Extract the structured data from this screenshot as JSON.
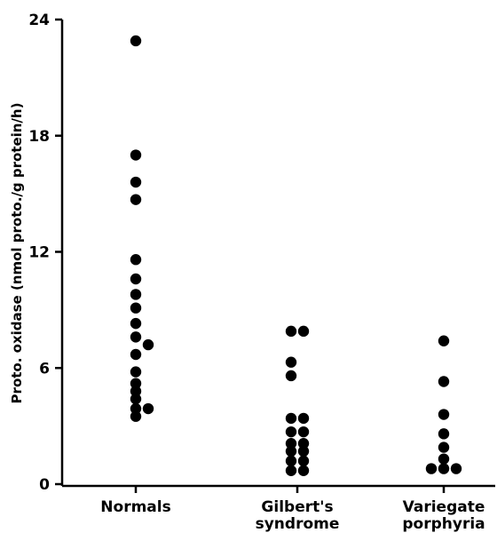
{
  "chart_data": {
    "type": "scatter",
    "title": "",
    "xlabel": "",
    "ylabel": "Proto. oxidase (nmol proto./g protein/h)",
    "ylim": [
      0,
      24
    ],
    "yticks": [
      0,
      6,
      12,
      18,
      24
    ],
    "grid": false,
    "categories": [
      {
        "key": "normals",
        "lines": [
          "Normals"
        ]
      },
      {
        "key": "gilbert",
        "lines": [
          "Gilbert's",
          "syndrome"
        ]
      },
      {
        "key": "variegate",
        "lines": [
          "Variegate",
          "porphyria"
        ]
      }
    ],
    "series": [
      {
        "category": "normals",
        "points": [
          {
            "offset": 0,
            "y": 22.9
          },
          {
            "offset": 0,
            "y": 17.0
          },
          {
            "offset": 0,
            "y": 15.6
          },
          {
            "offset": 0,
            "y": 14.7
          },
          {
            "offset": 0,
            "y": 11.6
          },
          {
            "offset": 0,
            "y": 10.6
          },
          {
            "offset": 0,
            "y": 9.8
          },
          {
            "offset": 0,
            "y": 9.1
          },
          {
            "offset": 0,
            "y": 8.3
          },
          {
            "offset": 0,
            "y": 7.6
          },
          {
            "offset": 0,
            "y": 6.7
          },
          {
            "offset": 0,
            "y": 5.8
          },
          {
            "offset": 0,
            "y": 5.2
          },
          {
            "offset": 0,
            "y": 4.8
          },
          {
            "offset": 0,
            "y": 4.4
          },
          {
            "offset": 0,
            "y": 3.9
          },
          {
            "offset": 0,
            "y": 3.5
          },
          {
            "offset": 1,
            "y": 7.2
          },
          {
            "offset": 1,
            "y": 3.9
          }
        ]
      },
      {
        "category": "gilbert",
        "points": [
          {
            "offset": -0.5,
            "y": 7.9
          },
          {
            "offset": 0.5,
            "y": 7.9
          },
          {
            "offset": -0.5,
            "y": 6.3
          },
          {
            "offset": -0.5,
            "y": 5.6
          },
          {
            "offset": -0.5,
            "y": 3.4
          },
          {
            "offset": 0.5,
            "y": 3.4
          },
          {
            "offset": -0.5,
            "y": 2.7
          },
          {
            "offset": 0.5,
            "y": 2.7
          },
          {
            "offset": -0.5,
            "y": 2.1
          },
          {
            "offset": 0.5,
            "y": 2.1
          },
          {
            "offset": -0.5,
            "y": 1.7
          },
          {
            "offset": 0.5,
            "y": 1.7
          },
          {
            "offset": -0.5,
            "y": 1.2
          },
          {
            "offset": 0.5,
            "y": 1.2
          },
          {
            "offset": -0.5,
            "y": 0.7
          },
          {
            "offset": 0.5,
            "y": 0.7
          }
        ]
      },
      {
        "category": "variegate",
        "points": [
          {
            "offset": 0,
            "y": 7.4
          },
          {
            "offset": 0,
            "y": 5.3
          },
          {
            "offset": 0,
            "y": 3.6
          },
          {
            "offset": 0,
            "y": 2.6
          },
          {
            "offset": 0,
            "y": 1.9
          },
          {
            "offset": 0,
            "y": 1.3
          },
          {
            "offset": -1,
            "y": 0.8
          },
          {
            "offset": 0,
            "y": 0.8
          },
          {
            "offset": 1,
            "y": 0.8
          }
        ]
      }
    ]
  },
  "colors": {
    "axis": "#000000",
    "marker": "#000000",
    "background": "#ffffff"
  }
}
